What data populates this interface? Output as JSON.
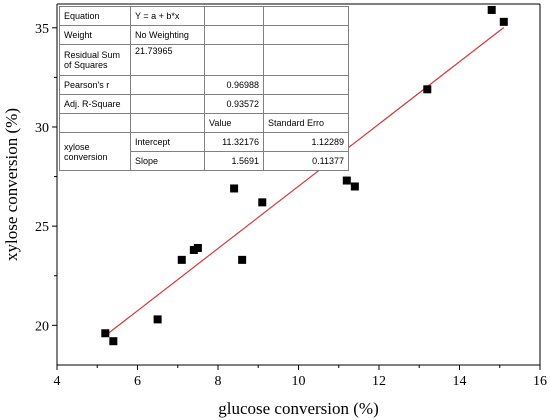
{
  "chart_data": {
    "type": "scatter",
    "xlabel": "glucose conversion (%)",
    "ylabel": "xylose conversion (%)",
    "xlim": [
      4,
      16
    ],
    "ylim": [
      18,
      36.2
    ],
    "x_ticks": [
      4,
      6,
      8,
      10,
      12,
      14,
      16
    ],
    "y_ticks": [
      20,
      25,
      30,
      35
    ],
    "grid": false,
    "series": [
      {
        "points": [
          {
            "x": 5.2,
            "y": 19.6
          },
          {
            "x": 5.4,
            "y": 19.2
          },
          {
            "x": 6.5,
            "y": 20.3
          },
          {
            "x": 7.1,
            "y": 23.3
          },
          {
            "x": 7.4,
            "y": 23.8
          },
          {
            "x": 7.5,
            "y": 23.9
          },
          {
            "x": 8.4,
            "y": 26.9
          },
          {
            "x": 8.6,
            "y": 23.3
          },
          {
            "x": 9.1,
            "y": 26.2
          },
          {
            "x": 11.2,
            "y": 27.3
          },
          {
            "x": 11.4,
            "y": 27.0
          },
          {
            "x": 13.2,
            "y": 31.9
          },
          {
            "x": 14.8,
            "y": 35.9
          },
          {
            "x": 15.1,
            "y": 35.3
          }
        ]
      }
    ],
    "fit": {
      "intercept": 11.32176,
      "slope": 1.5691,
      "x_range": [
        5.2,
        15.1
      ],
      "color": "#d23a3a"
    },
    "stats_table": {
      "rows": [
        [
          "Equation",
          "Y = a + b*x",
          "",
          ""
        ],
        [
          "Weight",
          "No Weighting",
          "",
          ""
        ],
        [
          "Residual Sum of Squares",
          "21.73965",
          "",
          ""
        ],
        [
          "Pearson's r",
          "",
          "0.96988",
          ""
        ],
        [
          "Adj. R-Square",
          "",
          "0.93572",
          ""
        ],
        [
          "",
          "",
          "Value",
          "Standard Erro"
        ],
        [
          "xylose conversion",
          "Intercept",
          "11.32176",
          "1.12289"
        ],
        [
          "",
          "Slope",
          "1.5691",
          "0.11377"
        ]
      ]
    }
  }
}
